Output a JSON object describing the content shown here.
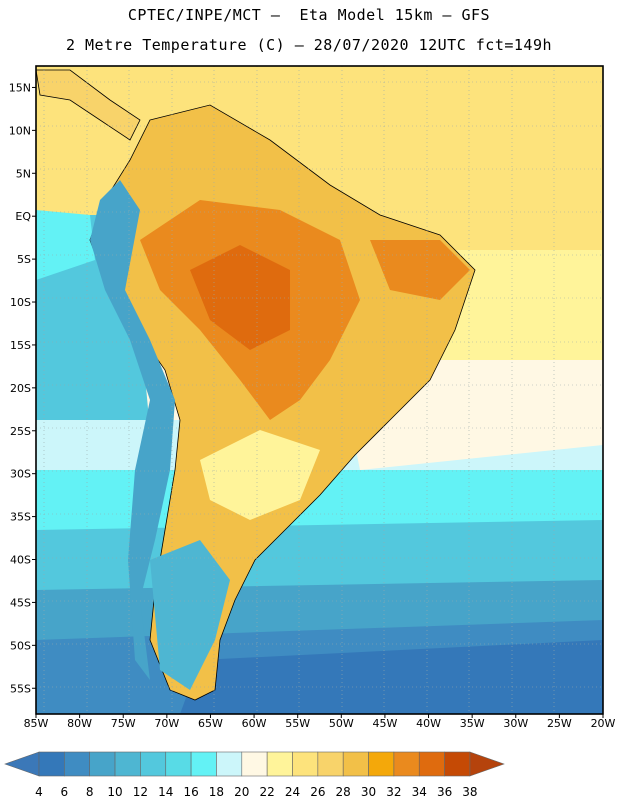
{
  "header": {
    "line1": "CPTEC/INPE/MCT –  Eta Model 15km – GFS",
    "line2": "2 Metre Temperature (C) – 28/07/2020 12UTC fct=149h"
  },
  "map": {
    "lat_ticks": [
      "15N",
      "10N",
      "5N",
      "EQ",
      "5S",
      "10S",
      "15S",
      "20S",
      "25S",
      "30S",
      "35S",
      "40S",
      "45S",
      "50S",
      "55S"
    ],
    "lon_ticks": [
      "85W",
      "80W",
      "75W",
      "70W",
      "65W",
      "60W",
      "55W",
      "50W",
      "45W",
      "40W",
      "35W",
      "30W",
      "25W",
      "20W"
    ],
    "lat_range": [
      17.5,
      -58
    ],
    "lon_range": [
      -85,
      -20
    ]
  },
  "colorbar": {
    "labels": [
      "4",
      "6",
      "8",
      "10",
      "12",
      "14",
      "16",
      "18",
      "20",
      "22",
      "24",
      "26",
      "28",
      "30",
      "32",
      "34",
      "36",
      "38"
    ],
    "colors": {
      "below": "#3b78b8",
      "bins": [
        "#3478b9",
        "#3f8cc2",
        "#47a4c9",
        "#4eb6d2",
        "#53c8dd",
        "#58dbe6",
        "#63f2f5",
        "#ccf6fa",
        "#fff8e4",
        "#fff49a",
        "#fde37c",
        "#f8d36a",
        "#f2c048",
        "#f4a80a",
        "#ea8a1e",
        "#df6b0e",
        "#c54a05"
      ],
      "above": "#b5430c"
    }
  }
}
